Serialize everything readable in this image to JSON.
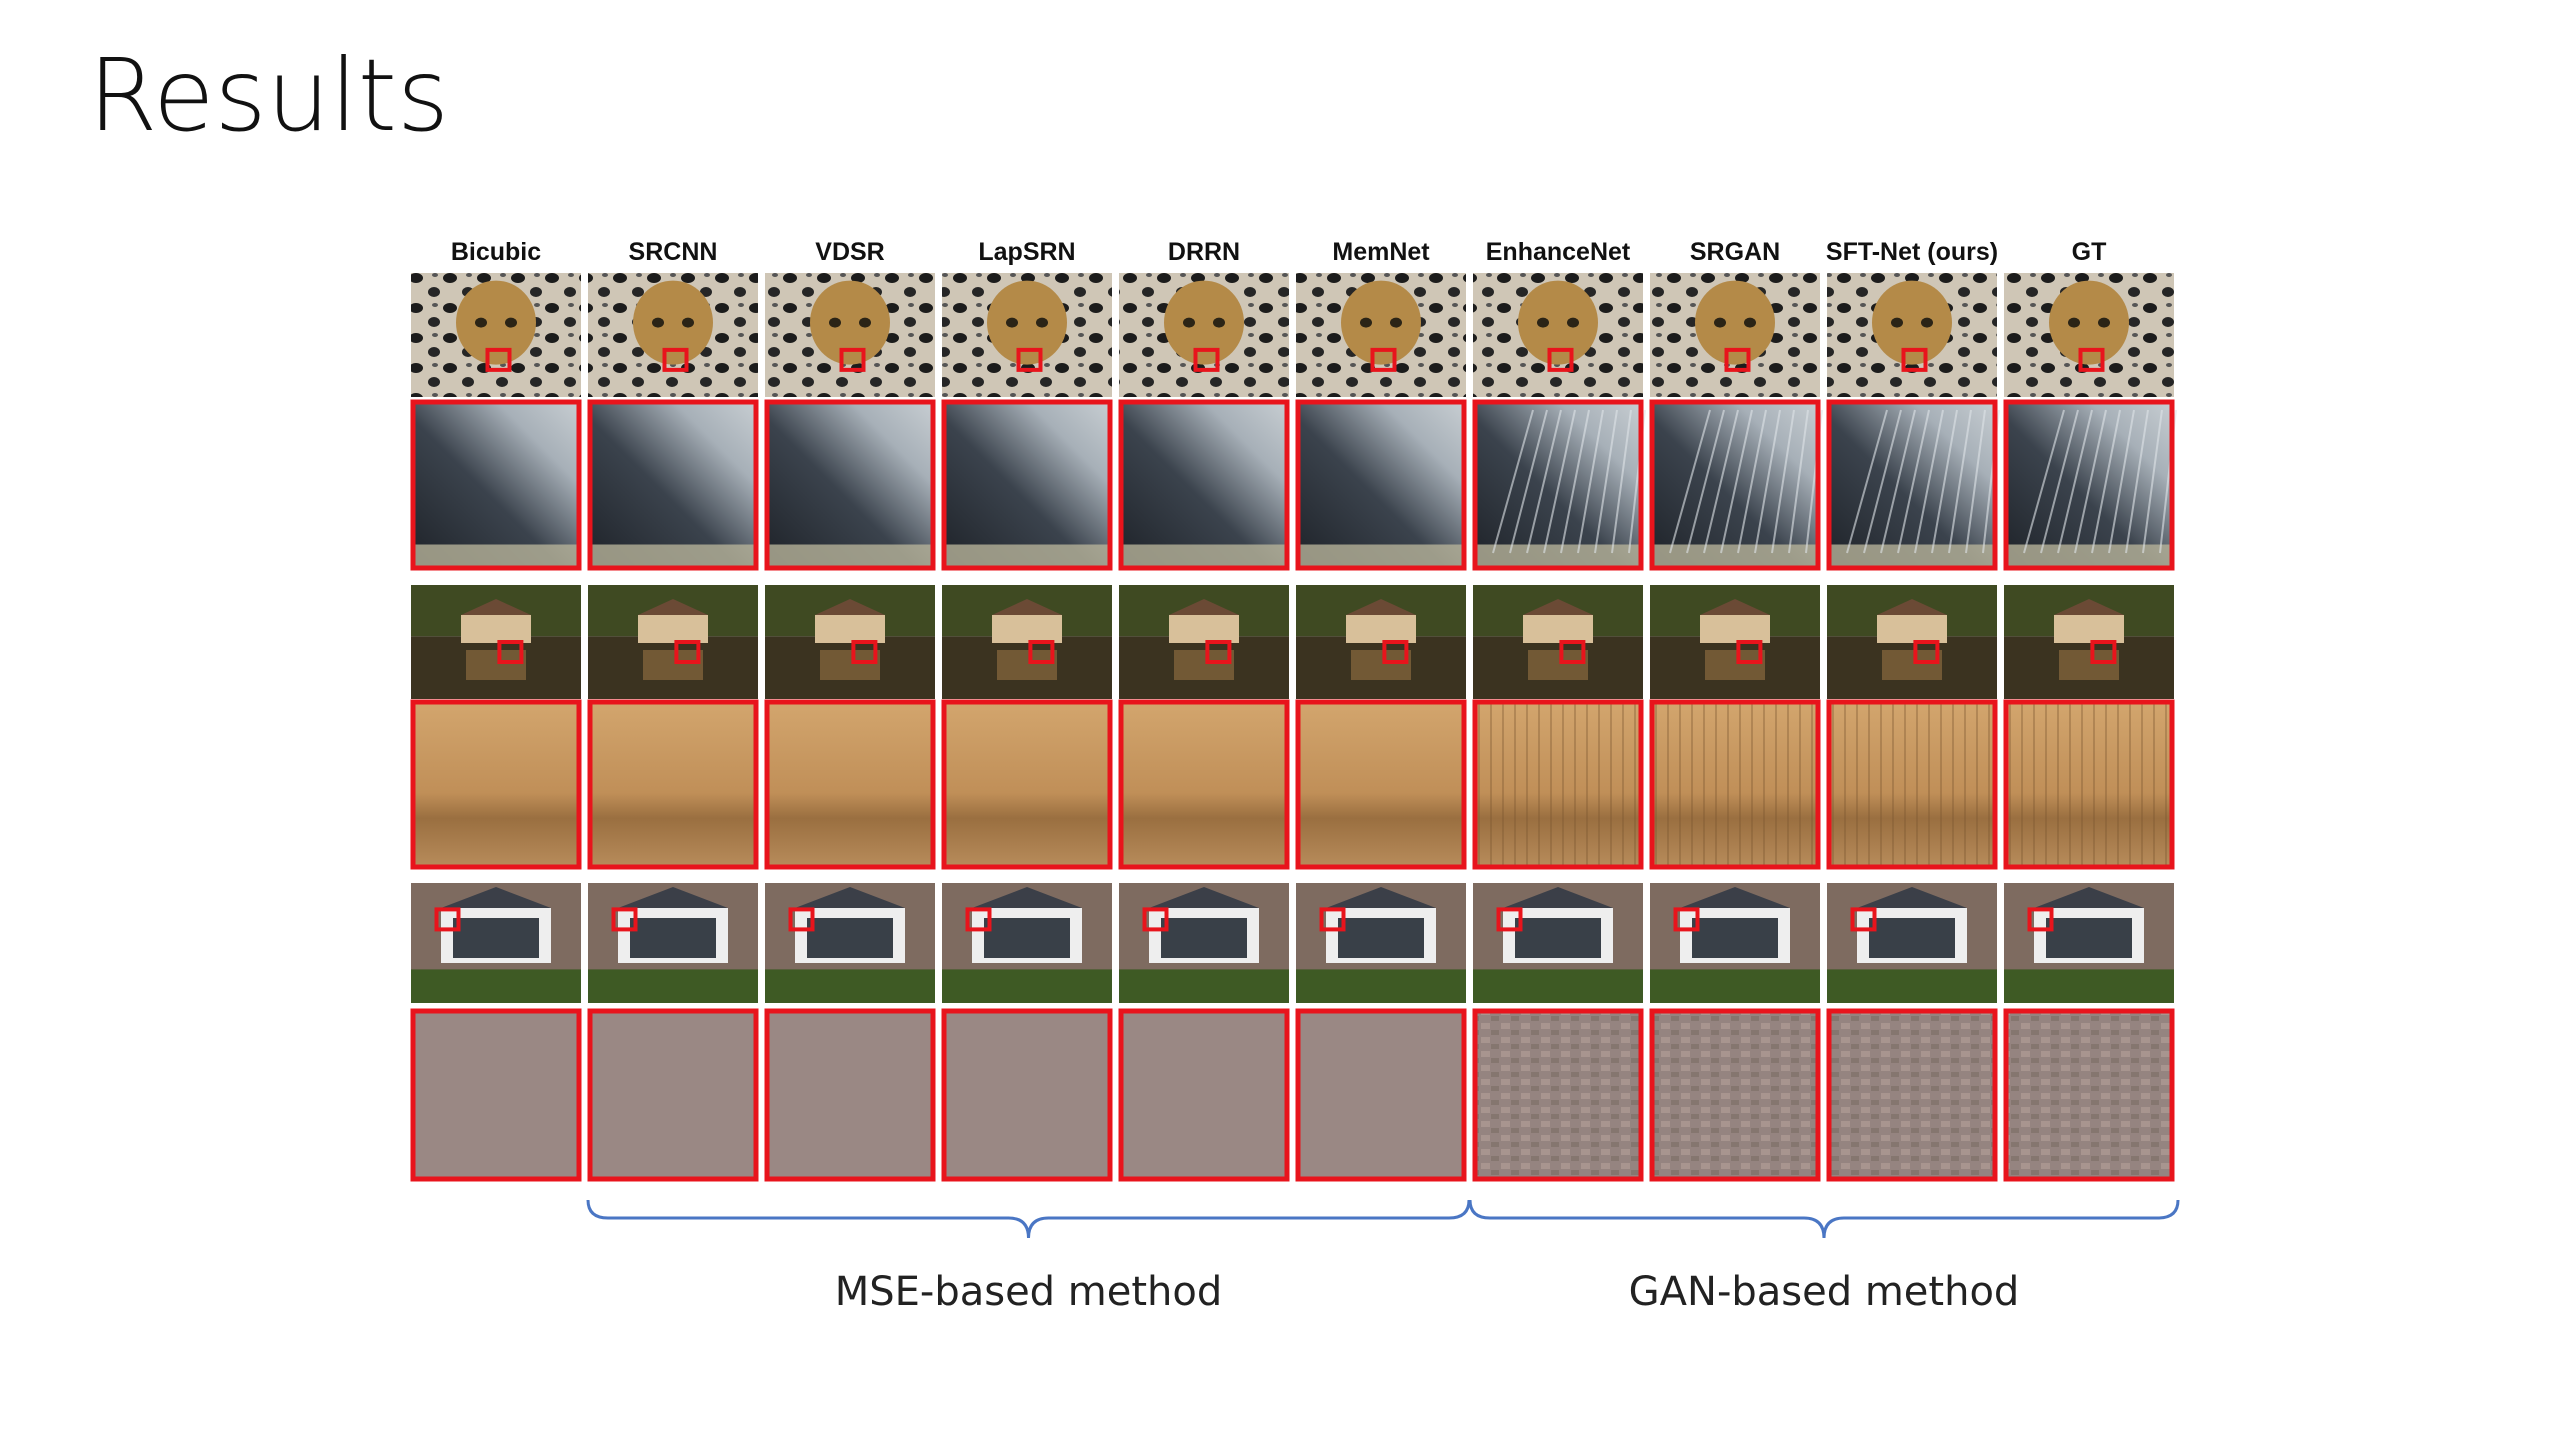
{
  "title": "Results",
  "methods": [
    "Bicubic",
    "SRCNN",
    "VDSR",
    "LapSRN",
    "DRRN",
    "MemNet",
    "EnhanceNet",
    "SRGAN",
    "SFT-Net (ours)",
    "GT"
  ],
  "groups": [
    "MSE-based method",
    "GAN-based method"
  ]
}
